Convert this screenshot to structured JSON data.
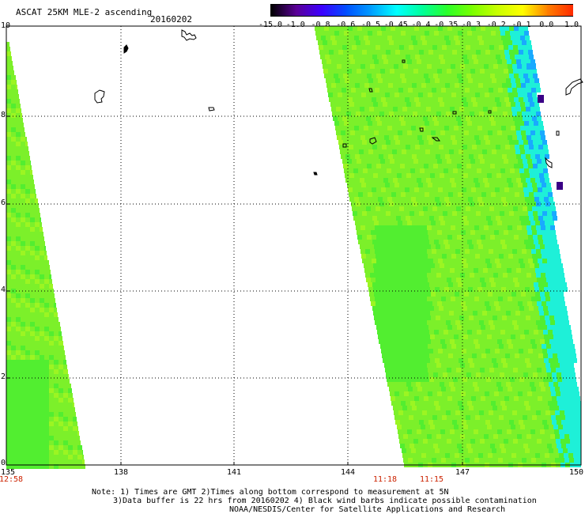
{
  "header": {
    "title": "ASCAT 25KM MLE-2 ascending",
    "date": "20160202"
  },
  "colorbar": {
    "labels": [
      "-15.0",
      "-1.0",
      "-0.8",
      "-0.6",
      "-0.5",
      "-0.45",
      "-0.4",
      "-0.35",
      "-0.3",
      "-0.2",
      "-0.1",
      "0.0",
      "1.0"
    ],
    "colors": [
      "#000000",
      "#5a0096",
      "#3c00ff",
      "#0050ff",
      "#00a0ff",
      "#00ffff",
      "#00ff9a",
      "#2aff2a",
      "#7aff00",
      "#c8ff00",
      "#ffff00",
      "#ff8000",
      "#ff2a00"
    ]
  },
  "axes": {
    "lat_ticks": [
      "10",
      "8",
      "6",
      "4",
      "2",
      "0"
    ],
    "lon_ticks": [
      "135",
      "138",
      "141",
      "144",
      "147",
      "150"
    ],
    "times": [
      "12:58",
      "11:18",
      "11:15"
    ]
  },
  "notes": {
    "line1": "Note: 1) Times are GMT 2)Times along bottom correspond to measurement at 5N",
    "line2": "3)Data buffer is 22 hrs from 20160202 4) Black wind barbs indicate possible contamination",
    "line3": "NOAA/NESDIS/Center for Satellite Applications and Research"
  },
  "map_colors": {
    "base": "#7cf02a",
    "greener": "#52ee30",
    "yellowish": "#9cf522",
    "cyan": "#1ef0d8",
    "blue": "#19aaff",
    "purple": "#3a0086"
  }
}
